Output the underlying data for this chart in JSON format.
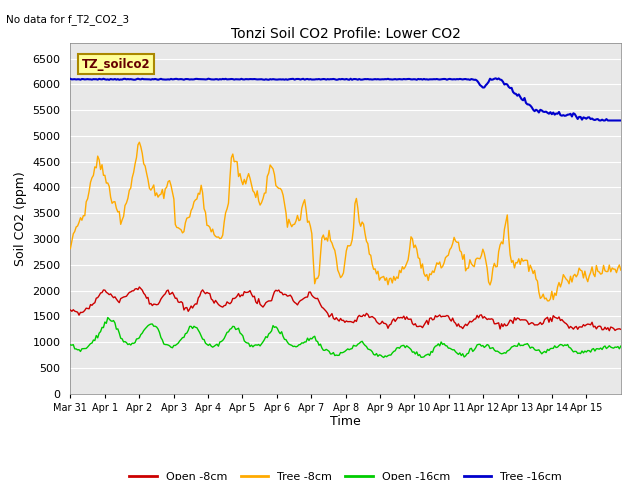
{
  "title": "Tonzi Soil CO2 Profile: Lower CO2",
  "subtitle": "No data for f_T2_CO2_3",
  "ylabel": "Soil CO2 (ppm)",
  "xlabel": "Time",
  "legend_label": "TZ_soilco2",
  "ylim": [
    0,
    6800
  ],
  "yticks": [
    0,
    500,
    1000,
    1500,
    2000,
    2500,
    3000,
    3500,
    4000,
    4500,
    5000,
    5500,
    6000,
    6500
  ],
  "xtick_labels": [
    "Mar 31",
    "Apr 1",
    "Apr 2",
    "Apr 3",
    "Apr 4",
    "Apr 5",
    "Apr 6",
    "Apr 7",
    "Apr 8",
    "Apr 9",
    "Apr 10",
    "Apr 11",
    "Apr 12",
    "Apr 13",
    "Apr 14",
    "Apr 15"
  ],
  "series_colors": {
    "open8": "#cc0000",
    "tree8": "#ffaa00",
    "open16": "#00cc00",
    "tree16": "#0000cc"
  },
  "series_labels": [
    "Open -8cm",
    "Tree -8cm",
    "Open -16cm",
    "Tree -16cm"
  ],
  "bg_color": "#e8e8e8"
}
